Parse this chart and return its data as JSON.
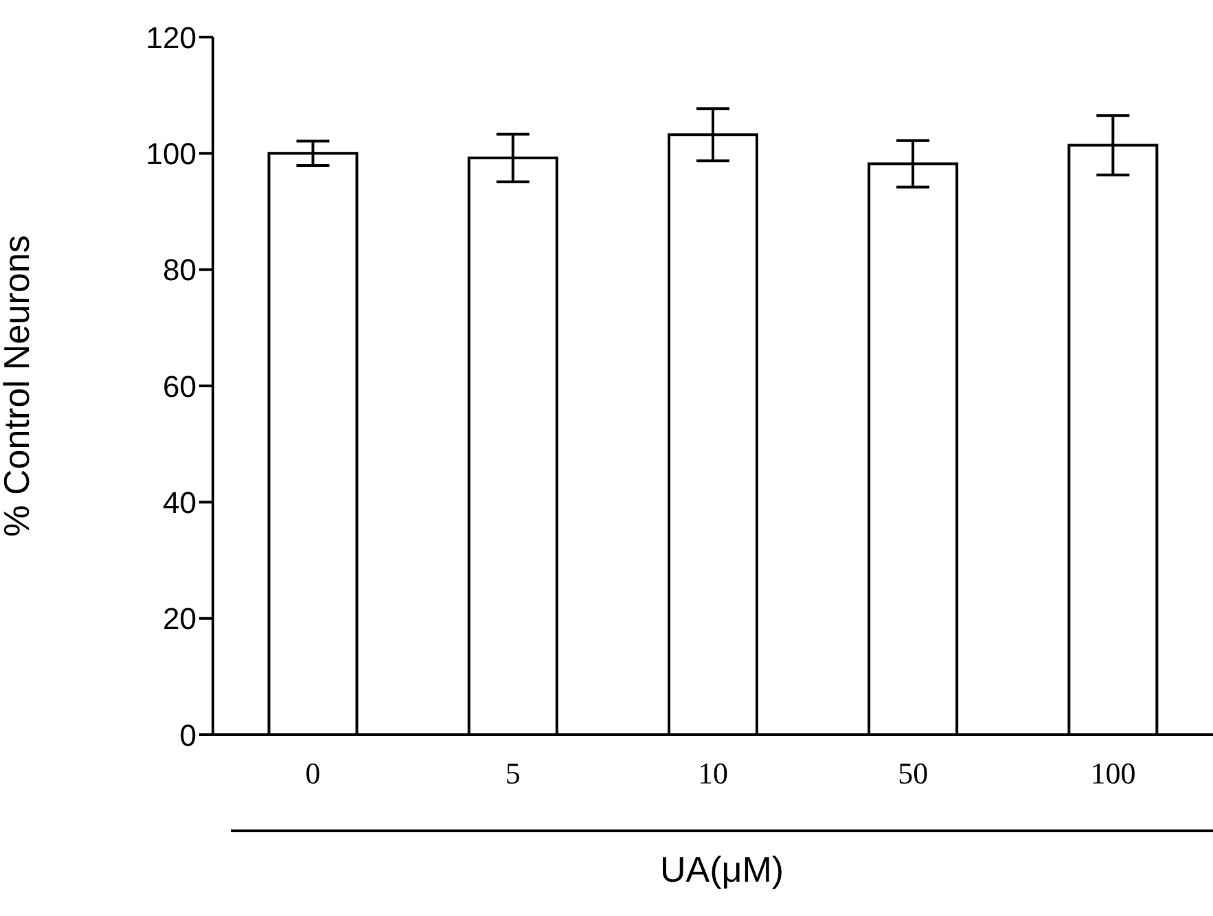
{
  "chart_data": {
    "type": "bar",
    "xlabel": "UA(μM)",
    "ylabel": "% Control Neurons",
    "categories": [
      "0",
      "5",
      "10",
      "50",
      "100"
    ],
    "values": [
      100,
      99.2,
      103.2,
      98.2,
      101.4
    ],
    "errors": [
      2.1,
      4.1,
      4.5,
      4.0,
      5.1
    ],
    "color": "#ffffff",
    "ylim": [
      0,
      120
    ],
    "yticks": [
      0,
      20,
      40,
      60,
      80,
      100,
      120
    ],
    "grid": false,
    "legend": false
  }
}
